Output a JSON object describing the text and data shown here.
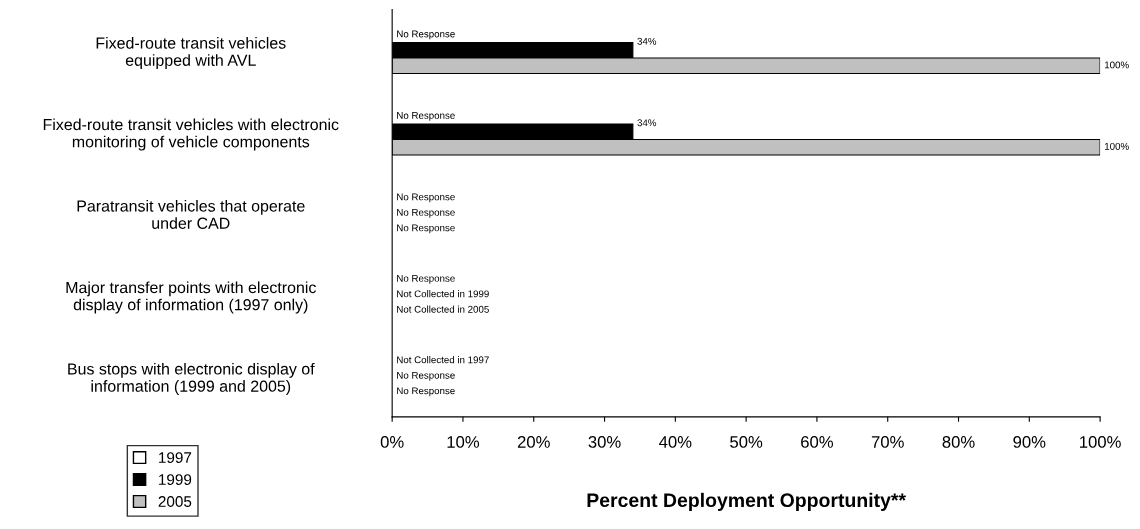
{
  "chart_data": {
    "type": "bar",
    "orientation": "horizontal",
    "xlabel": "Percent Deployment Opportunity**",
    "categories": [
      "Fixed-route transit vehicles\nequipped with AVL",
      "Fixed-route transit vehicles with electronic\nmonitoring of vehicle components",
      "Paratransit vehicles that operate\nunder CAD",
      "Major transfer points with electronic\ndisplay of information (1997 only)",
      "Bus stops with electronic display of\ninformation (1999 and 2005)"
    ],
    "series": [
      {
        "name": "1997",
        "color": "#ffffff",
        "values": [
          null,
          null,
          null,
          null,
          null
        ],
        "value_labels": [
          "No Response",
          "No Response",
          "No Response",
          "No Response",
          "Not Collected in 1997"
        ]
      },
      {
        "name": "1999",
        "color": "#000000",
        "values": [
          34,
          34,
          null,
          null,
          null
        ],
        "value_labels": [
          "34%",
          "34%",
          "No Response",
          "Not Collected in 1999",
          "No Response"
        ]
      },
      {
        "name": "2005",
        "color": "#c0c0c0",
        "values": [
          100,
          100,
          null,
          null,
          null
        ],
        "value_labels": [
          "100%",
          "100%",
          "No Response",
          "Not Collected in 2005",
          "No Response"
        ]
      }
    ],
    "xlim": [
      0,
      100
    ],
    "xticks": [
      {
        "value": 0,
        "label": "0%"
      },
      {
        "value": 10,
        "label": "10%"
      },
      {
        "value": 20,
        "label": "20%"
      },
      {
        "value": 30,
        "label": "30%"
      },
      {
        "value": 40,
        "label": "40%"
      },
      {
        "value": 50,
        "label": "50%"
      },
      {
        "value": 60,
        "label": "60%"
      },
      {
        "value": 70,
        "label": "70%"
      },
      {
        "value": 80,
        "label": "80%"
      },
      {
        "value": 90,
        "label": "90%"
      },
      {
        "value": 100,
        "label": "100%"
      }
    ],
    "grid": false,
    "legend": "bottom left"
  }
}
